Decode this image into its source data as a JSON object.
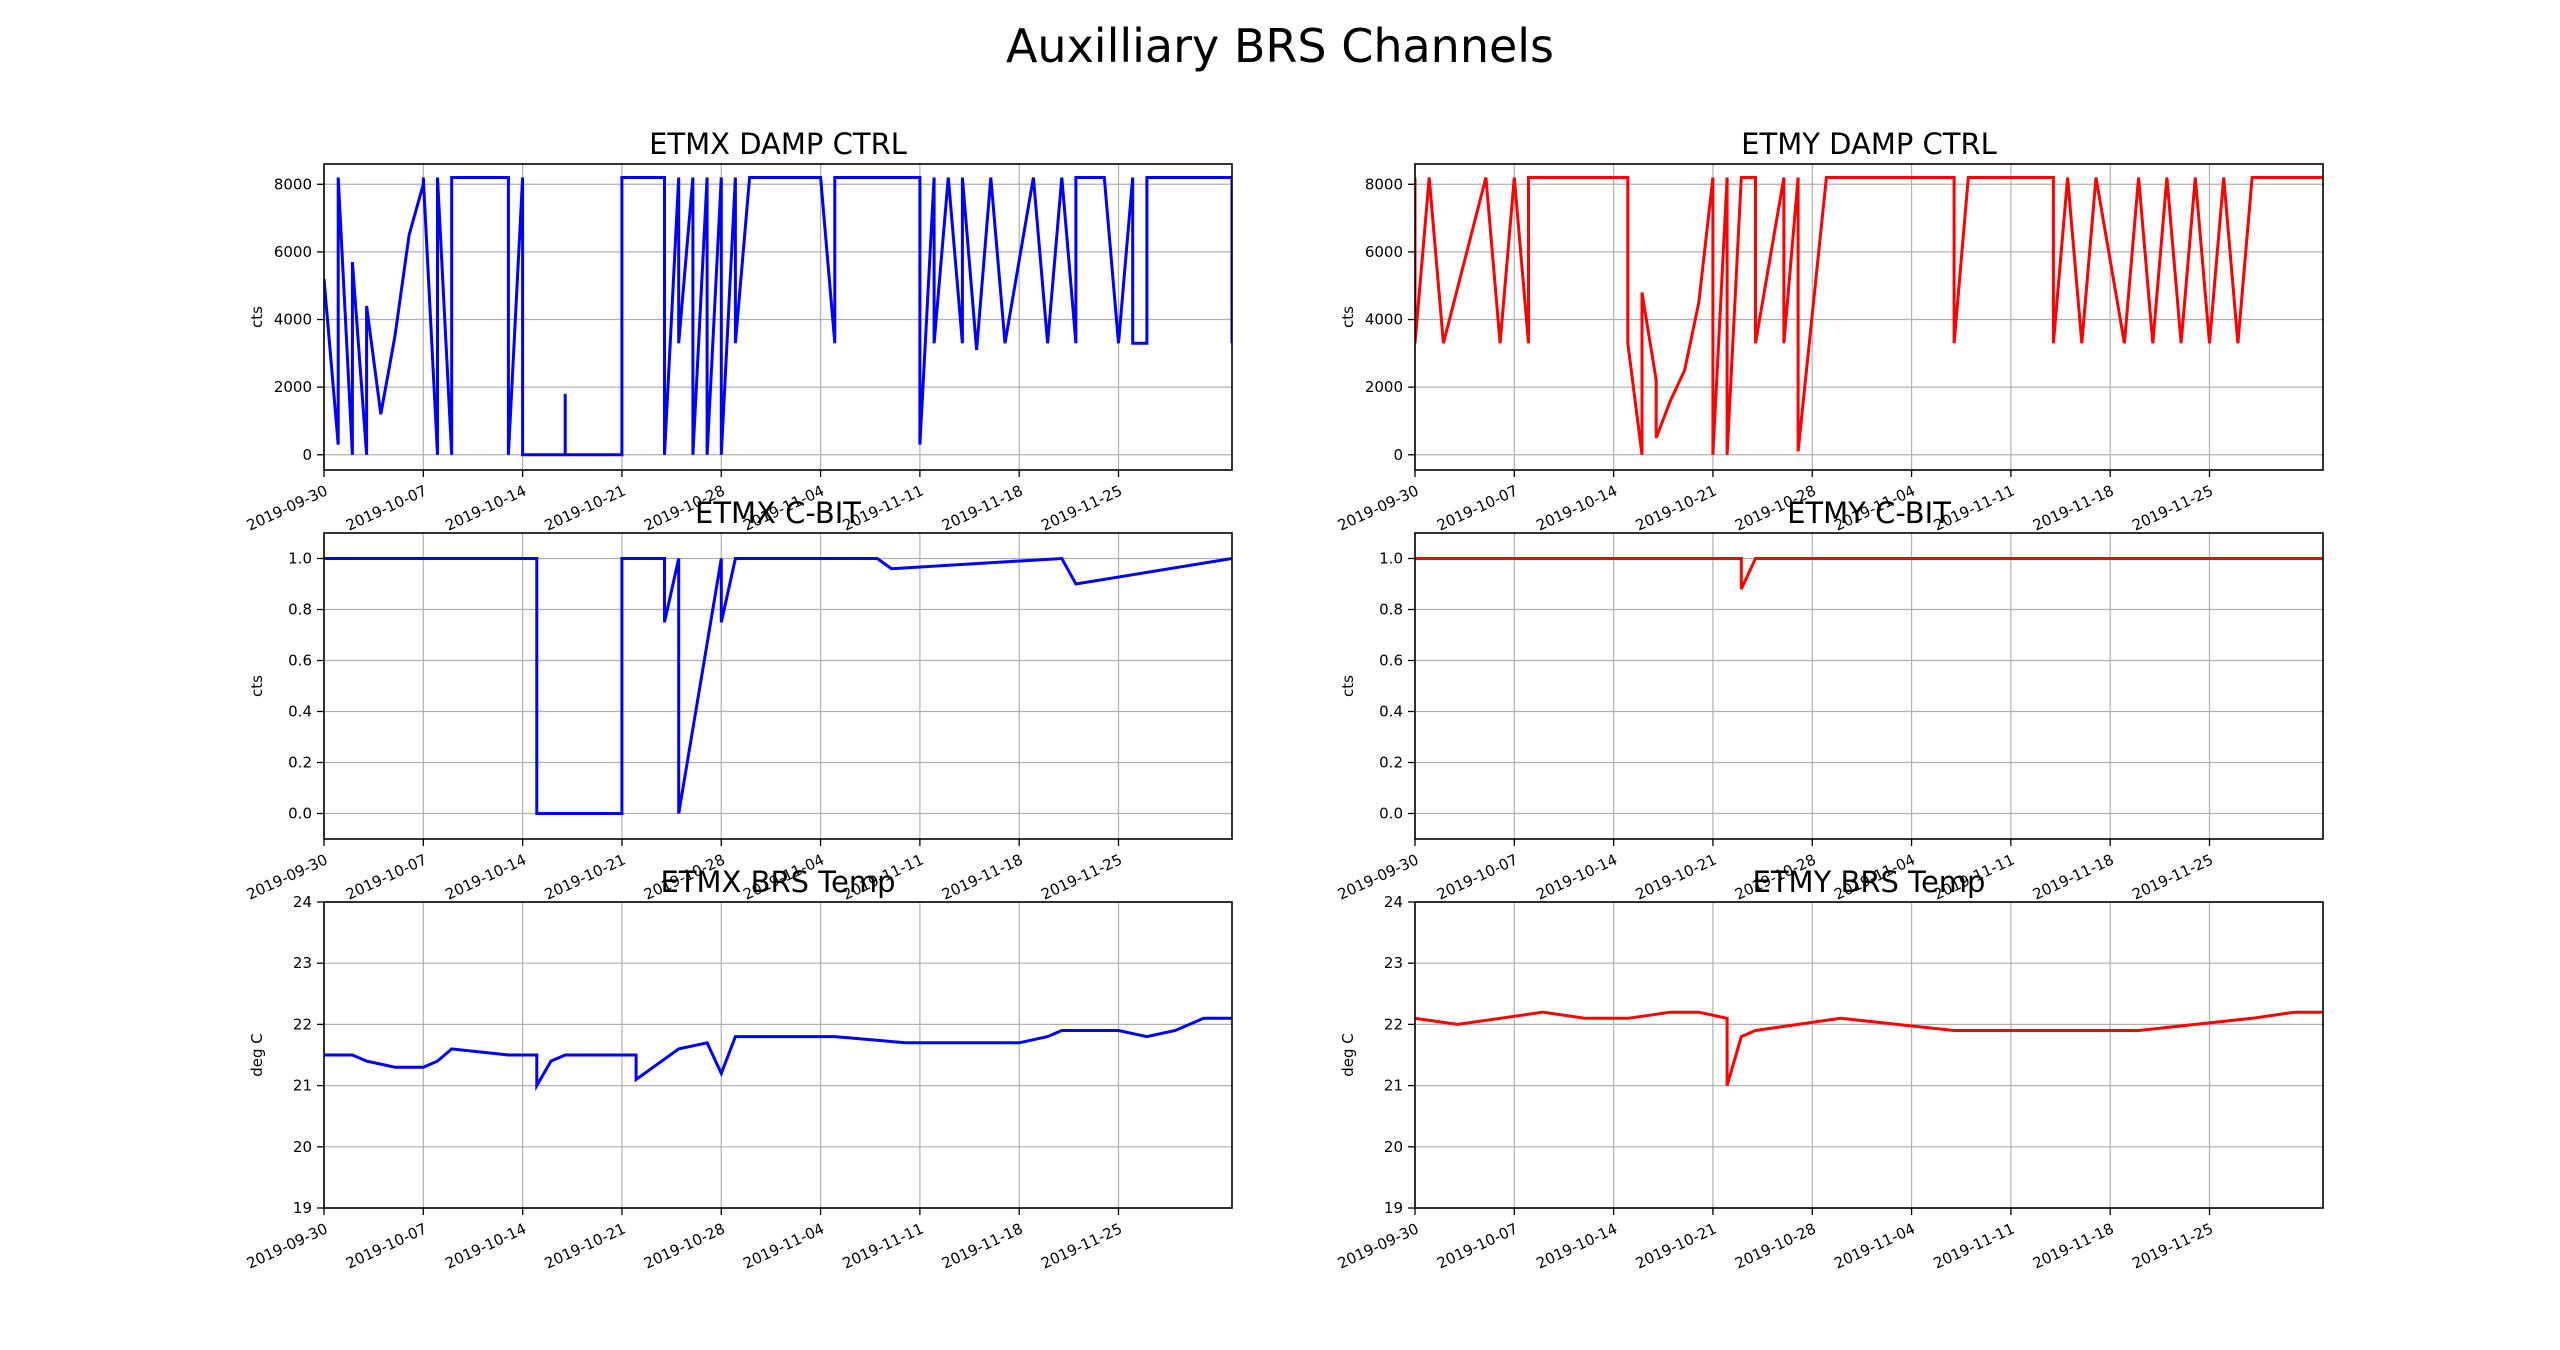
{
  "figure": {
    "suptitle": "Auxilliary BRS Channels",
    "tick_dates": [
      "2019-09-30",
      "2019-10-07",
      "2019-10-14",
      "2019-10-21",
      "2019-10-28",
      "2019-11-04",
      "2019-11-11",
      "2019-11-18",
      "2019-11-25"
    ],
    "colors": {
      "etmx": "#0000ff",
      "etmy": "#ff0000",
      "grid": "#b0b0b0",
      "axes": "#000000"
    }
  },
  "chart_data": [
    {
      "id": "etmx-damp",
      "type": "line",
      "title": "ETMX DAMP CTRL",
      "ylabel": "cts",
      "color": "#0000ff",
      "xlim": [
        "2019-09-30",
        "2019-12-03"
      ],
      "ylim": [
        -450,
        8600
      ],
      "yticks": [
        0,
        2000,
        4000,
        6000,
        8000
      ],
      "ytick_labels": [
        "0",
        "2000",
        "4000",
        "6000",
        "8000"
      ],
      "grid": true,
      "series": [
        {
          "x": [
            "2019-09-30",
            "2019-10-01",
            "2019-10-01",
            "2019-10-02",
            "2019-10-02",
            "2019-10-03",
            "2019-10-03",
            "2019-10-04",
            "2019-10-05",
            "2019-10-06",
            "2019-10-07",
            "2019-10-07",
            "2019-10-08",
            "2019-10-08",
            "2019-10-09",
            "2019-10-09",
            "2019-10-13",
            "2019-10-13",
            "2019-10-14",
            "2019-10-14",
            "2019-10-15",
            "2019-10-17",
            "2019-10-17",
            "2019-10-17",
            "2019-10-21",
            "2019-10-21",
            "2019-10-22",
            "2019-10-24",
            "2019-10-24",
            "2019-10-25",
            "2019-10-25",
            "2019-10-26",
            "2019-10-26",
            "2019-10-27",
            "2019-10-27",
            "2019-10-28",
            "2019-10-28",
            "2019-10-29",
            "2019-10-29",
            "2019-10-30",
            "2019-10-31",
            "2019-11-04",
            "2019-11-05",
            "2019-11-05",
            "2019-11-10",
            "2019-11-11",
            "2019-11-11",
            "2019-11-12",
            "2019-11-12",
            "2019-11-13",
            "2019-11-14",
            "2019-11-14",
            "2019-11-15",
            "2019-11-16",
            "2019-11-17",
            "2019-11-19",
            "2019-11-20",
            "2019-11-21",
            "2019-11-22",
            "2019-11-22",
            "2019-11-24",
            "2019-11-25",
            "2019-11-26",
            "2019-11-26",
            "2019-11-27",
            "2019-11-27",
            "2019-11-28",
            "2019-12-01",
            "2019-12-03",
            "2019-12-03"
          ],
          "y": [
            5200,
            300,
            8200,
            0,
            5700,
            0,
            4400,
            1200,
            3500,
            6500,
            8000,
            8200,
            0,
            8200,
            0,
            8200,
            8200,
            0,
            8200,
            0,
            0,
            0,
            1800,
            0,
            0,
            8200,
            8200,
            8200,
            0,
            8200,
            3300,
            8200,
            0,
            8200,
            0,
            8200,
            0,
            8200,
            3300,
            8200,
            8200,
            8200,
            3300,
            8200,
            8200,
            8200,
            300,
            8200,
            3300,
            8200,
            3300,
            8200,
            3100,
            8200,
            3300,
            8200,
            3300,
            8200,
            3300,
            8200,
            8200,
            3300,
            8200,
            3300,
            3300,
            8200,
            8200,
            8200,
            8200,
            3300
          ]
        }
      ]
    },
    {
      "id": "etmy-damp",
      "type": "line",
      "title": "ETMY DAMP CTRL",
      "ylabel": "cts",
      "color": "#ff0000",
      "xlim": [
        "2019-09-30",
        "2019-12-03"
      ],
      "ylim": [
        -450,
        8600
      ],
      "yticks": [
        0,
        2000,
        4000,
        6000,
        8000
      ],
      "ytick_labels": [
        "0",
        "2000",
        "4000",
        "6000",
        "8000"
      ],
      "grid": true,
      "series": [
        {
          "x": [
            "2019-09-30",
            "2019-09-30",
            "2019-10-01",
            "2019-10-02",
            "2019-10-05",
            "2019-10-06",
            "2019-10-07",
            "2019-10-08",
            "2019-10-08",
            "2019-10-09",
            "2019-10-15",
            "2019-10-15",
            "2019-10-16",
            "2019-10-16",
            "2019-10-17",
            "2019-10-17",
            "2019-10-18",
            "2019-10-19",
            "2019-10-20",
            "2019-10-21",
            "2019-10-21",
            "2019-10-22",
            "2019-10-22",
            "2019-10-23",
            "2019-10-24",
            "2019-10-24",
            "2019-10-26",
            "2019-10-26",
            "2019-10-27",
            "2019-10-27",
            "2019-10-29",
            "2019-11-07",
            "2019-11-07",
            "2019-11-08",
            "2019-11-14",
            "2019-11-14",
            "2019-11-15",
            "2019-11-16",
            "2019-11-17",
            "2019-11-19",
            "2019-11-20",
            "2019-11-21",
            "2019-11-22",
            "2019-11-23",
            "2019-11-24",
            "2019-11-25",
            "2019-11-26",
            "2019-11-27",
            "2019-11-28",
            "2019-12-03"
          ],
          "y": [
            8200,
            3300,
            8200,
            3300,
            8200,
            3300,
            8200,
            3300,
            8200,
            8200,
            8200,
            3300,
            0,
            4800,
            2200,
            500,
            1600,
            2500,
            4500,
            8200,
            0,
            8200,
            0,
            8200,
            8200,
            3300,
            8200,
            3300,
            8200,
            100,
            8200,
            8200,
            3300,
            8200,
            8200,
            3300,
            8200,
            3300,
            8200,
            3300,
            8200,
            3300,
            8200,
            3300,
            8200,
            3300,
            8200,
            3300,
            8200,
            8200
          ]
        }
      ]
    },
    {
      "id": "etmx-cbit",
      "type": "line",
      "title": "ETMX C-BIT",
      "ylabel": "cts",
      "color": "#0000ff",
      "xlim": [
        "2019-09-30",
        "2019-12-03"
      ],
      "ylim": [
        -0.1,
        1.1
      ],
      "yticks": [
        0,
        0.2,
        0.4,
        0.6,
        0.8,
        1.0
      ],
      "ytick_labels": [
        "0.0",
        "0.2",
        "0.4",
        "0.6",
        "0.8",
        "1.0"
      ],
      "grid": true,
      "series": [
        {
          "x": [
            "2019-09-30",
            "2019-10-15",
            "2019-10-15",
            "2019-10-21",
            "2019-10-21",
            "2019-10-24",
            "2019-10-24",
            "2019-10-25",
            "2019-10-25",
            "2019-10-28",
            "2019-10-28",
            "2019-10-29",
            "2019-11-08",
            "2019-11-09",
            "2019-11-21",
            "2019-11-22",
            "2019-12-03"
          ],
          "y": [
            1.0,
            1.0,
            0.0,
            0.0,
            1.0,
            1.0,
            0.75,
            1.0,
            0.0,
            1.0,
            0.75,
            1.0,
            1.0,
            0.96,
            1.0,
            0.9,
            1.0
          ]
        }
      ]
    },
    {
      "id": "etmy-cbit",
      "type": "line",
      "title": "ETMY C-BIT",
      "ylabel": "cts",
      "color": "#ff0000",
      "xlim": [
        "2019-09-30",
        "2019-12-03"
      ],
      "ylim": [
        -0.1,
        1.1
      ],
      "yticks": [
        0,
        0.2,
        0.4,
        0.6,
        0.8,
        1.0
      ],
      "ytick_labels": [
        "0.0",
        "0.2",
        "0.4",
        "0.6",
        "0.8",
        "1.0"
      ],
      "grid": true,
      "series": [
        {
          "x": [
            "2019-09-30",
            "2019-10-22",
            "2019-10-23",
            "2019-10-23",
            "2019-10-24",
            "2019-12-03"
          ],
          "y": [
            1.0,
            1.0,
            1.0,
            0.88,
            1.0,
            1.0
          ]
        }
      ]
    },
    {
      "id": "etmx-temp",
      "type": "line",
      "title": "ETMX BRS Temp",
      "ylabel": "deg C",
      "color": "#0000ff",
      "xlim": [
        "2019-09-30",
        "2019-12-03"
      ],
      "ylim": [
        19,
        24
      ],
      "yticks": [
        19,
        20,
        21,
        22,
        23,
        24
      ],
      "ytick_labels": [
        "19",
        "20",
        "21",
        "22",
        "23",
        "24"
      ],
      "grid": true,
      "series": [
        {
          "x": [
            "2019-09-30",
            "2019-10-02",
            "2019-10-03",
            "2019-10-05",
            "2019-10-07",
            "2019-10-08",
            "2019-10-09",
            "2019-10-13",
            "2019-10-15",
            "2019-10-15",
            "2019-10-16",
            "2019-10-17",
            "2019-10-21",
            "2019-10-22",
            "2019-10-22",
            "2019-10-25",
            "2019-10-27",
            "2019-10-28",
            "2019-10-29",
            "2019-11-01",
            "2019-11-05",
            "2019-11-10",
            "2019-11-14",
            "2019-11-18",
            "2019-11-20",
            "2019-11-21",
            "2019-11-25",
            "2019-11-27",
            "2019-11-29",
            "2019-12-01",
            "2019-12-03"
          ],
          "y": [
            21.5,
            21.5,
            21.4,
            21.3,
            21.3,
            21.4,
            21.6,
            21.5,
            21.5,
            21.0,
            21.4,
            21.5,
            21.5,
            21.5,
            21.1,
            21.6,
            21.7,
            21.2,
            21.8,
            21.8,
            21.8,
            21.7,
            21.7,
            21.7,
            21.8,
            21.9,
            21.9,
            21.8,
            21.9,
            22.1,
            22.1
          ]
        }
      ]
    },
    {
      "id": "etmy-temp",
      "type": "line",
      "title": "ETMY BRS Temp",
      "ylabel": "deg C",
      "color": "#ff0000",
      "xlim": [
        "2019-09-30",
        "2019-12-03"
      ],
      "ylim": [
        19,
        24
      ],
      "yticks": [
        19,
        20,
        21,
        22,
        23,
        24
      ],
      "ytick_labels": [
        "19",
        "20",
        "21",
        "22",
        "23",
        "24"
      ],
      "grid": true,
      "series": [
        {
          "x": [
            "2019-09-30",
            "2019-10-03",
            "2019-10-06",
            "2019-10-09",
            "2019-10-12",
            "2019-10-15",
            "2019-10-18",
            "2019-10-20",
            "2019-10-22",
            "2019-10-22",
            "2019-10-23",
            "2019-10-24",
            "2019-10-27",
            "2019-10-30",
            "2019-11-03",
            "2019-11-07",
            "2019-11-11",
            "2019-11-15",
            "2019-11-20",
            "2019-11-24",
            "2019-11-28",
            "2019-12-01",
            "2019-12-03"
          ],
          "y": [
            22.1,
            22.0,
            22.1,
            22.2,
            22.1,
            22.1,
            22.2,
            22.2,
            22.1,
            21.0,
            21.8,
            21.9,
            22.0,
            22.1,
            22.0,
            21.9,
            21.9,
            21.9,
            21.9,
            22.0,
            22.1,
            22.2,
            22.2
          ]
        }
      ]
    }
  ]
}
